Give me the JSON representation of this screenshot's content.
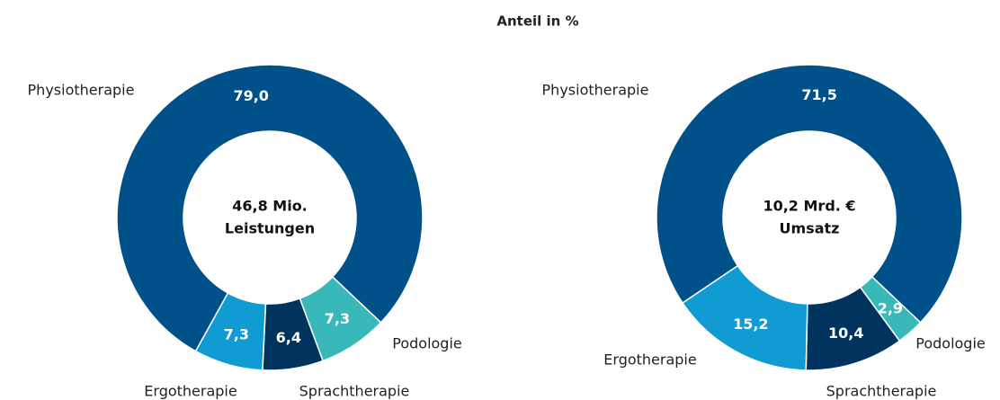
{
  "title": "Anteil in %",
  "chart_data": [
    {
      "type": "donut",
      "categories": [
        "Physiotherapie",
        "Podologie",
        "Sprachtherapie",
        "Ergotherapie"
      ],
      "values": [
        79.0,
        7.3,
        6.4,
        7.3
      ],
      "value_labels": [
        "79,0",
        "7,3",
        "6,4",
        "7,3"
      ],
      "colors": [
        "#00508a",
        "#38b8b8",
        "#00345f",
        "#109bd3"
      ],
      "center_label": [
        "46,8 Mio.",
        "Leistungen"
      ]
    },
    {
      "type": "donut",
      "categories": [
        "Physiotherapie",
        "Podologie",
        "Sprachtherapie",
        "Ergotherapie"
      ],
      "values": [
        71.5,
        2.9,
        10.4,
        15.2
      ],
      "value_labels": [
        "71,5",
        "2,9",
        "10,4",
        "15,2"
      ],
      "colors": [
        "#00508a",
        "#38b8b8",
        "#00345f",
        "#109bd3"
      ],
      "center_label": [
        "10,2 Mrd. €",
        "Umsatz"
      ]
    }
  ]
}
